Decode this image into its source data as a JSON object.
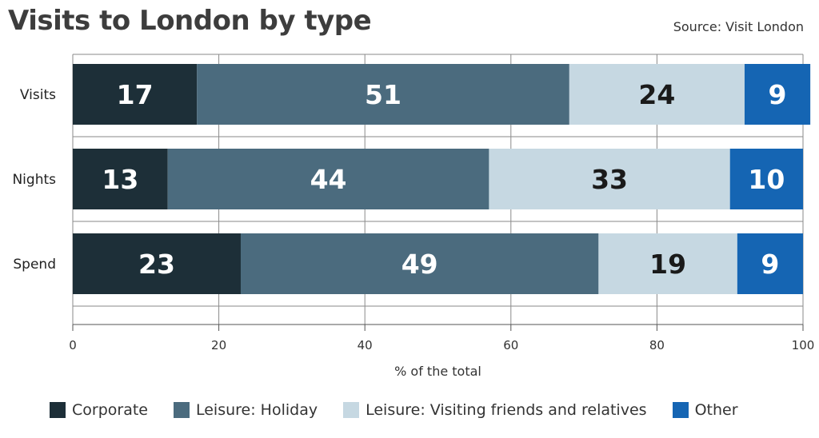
{
  "chart_data": {
    "type": "bar",
    "orientation": "horizontal",
    "stacked": true,
    "title": "Visits to London by type",
    "source": "Source: Visit London",
    "xlabel": "% of the total",
    "ylabel": "",
    "xlim": [
      0,
      100
    ],
    "xticks": [
      0,
      20,
      40,
      60,
      80,
      100
    ],
    "grid": true,
    "legend_position": "bottom",
    "categories": [
      "Visits",
      "Nights",
      "Spend"
    ],
    "series": [
      {
        "name": "Corporate",
        "values": [
          17,
          13,
          23
        ],
        "color": "#1d2f38",
        "label_color": "#ffffff"
      },
      {
        "name": "Leisure: Holiday",
        "values": [
          51,
          44,
          49
        ],
        "color": "#4b6b7e",
        "label_color": "#ffffff"
      },
      {
        "name": "Leisure: Visiting friends and relatives",
        "values": [
          24,
          33,
          19
        ],
        "color": "#c6d8e2",
        "label_color": "#1a1a1a"
      },
      {
        "name": "Other",
        "values": [
          9,
          10,
          9
        ],
        "color": "#1565b3",
        "label_color": "#ffffff"
      }
    ]
  }
}
